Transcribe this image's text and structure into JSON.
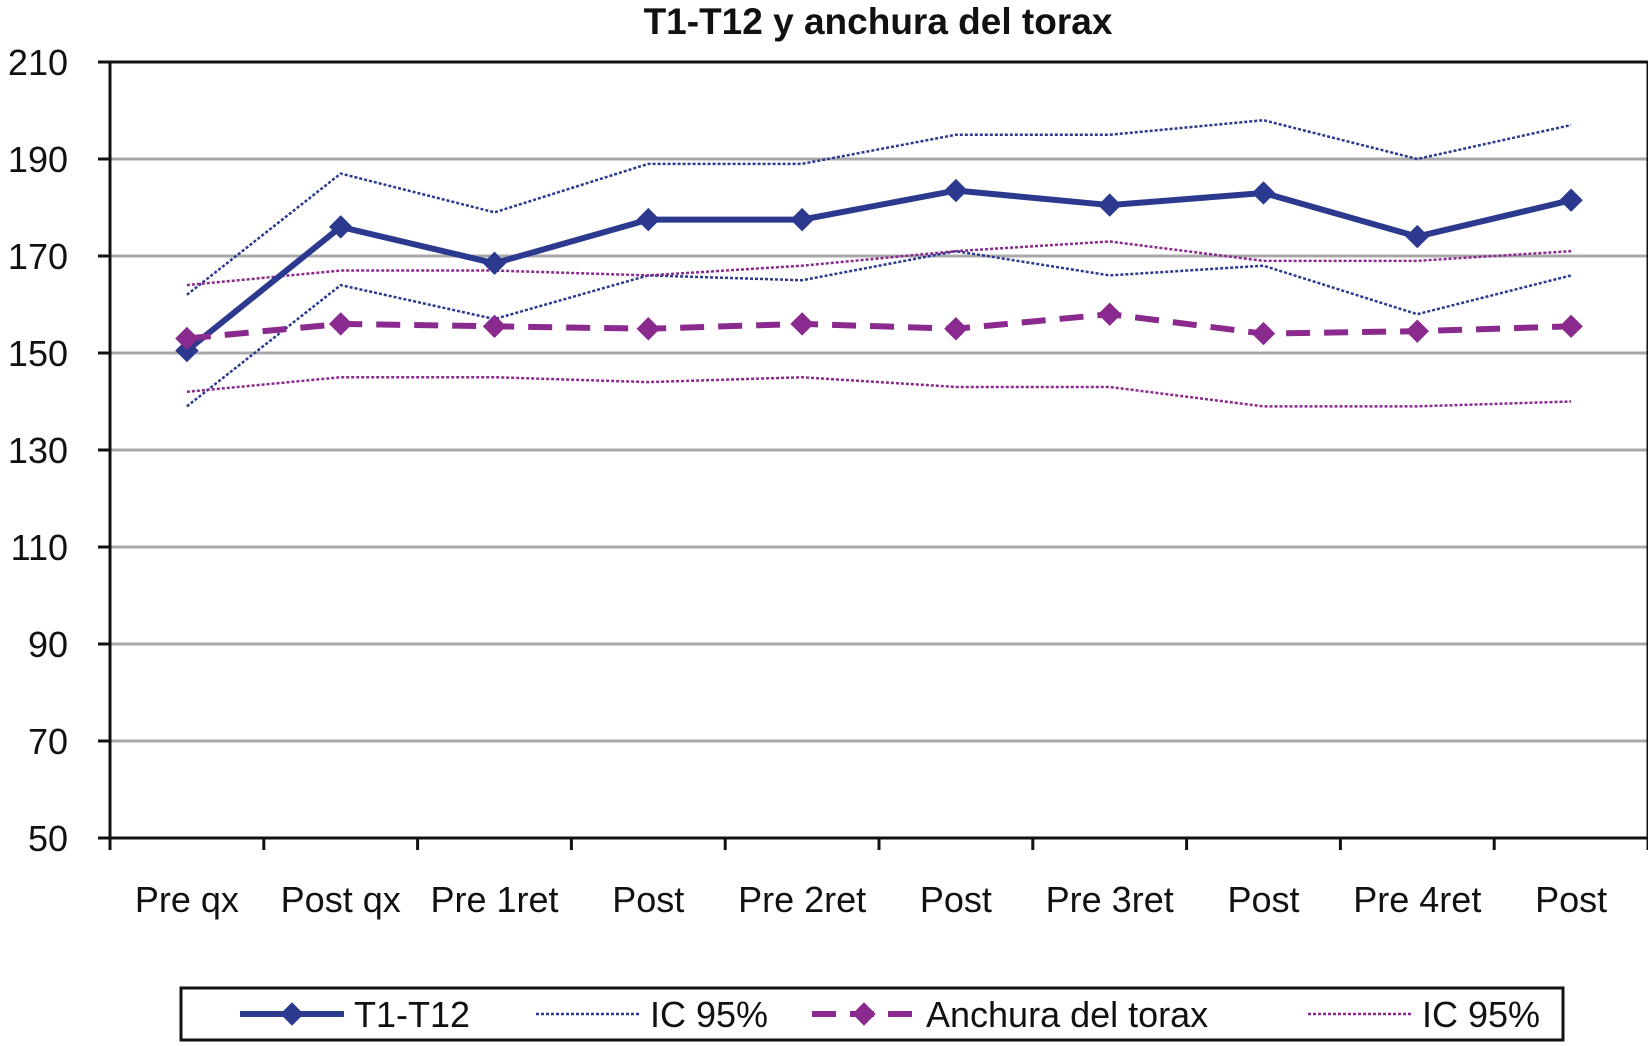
{
  "chart_data": {
    "type": "line",
    "title": "T1-T12 y anchura del torax",
    "xlabel": "",
    "ylabel": "",
    "categories": [
      "Pre qx",
      "Post qx",
      "Pre 1ret",
      "Post",
      "Pre 2ret",
      "Post",
      "Pre 3ret",
      "Post",
      "Pre 4ret",
      "Post"
    ],
    "ylim": [
      50,
      210
    ],
    "yticks": [
      "210",
      "190",
      "170",
      "150",
      "130",
      "110",
      "90",
      "70",
      "50"
    ],
    "ytick_values": [
      210,
      190,
      170,
      150,
      130,
      110,
      90,
      70,
      50
    ],
    "grid": true,
    "legend_position": "bottom",
    "series": [
      {
        "name": "T1-T12",
        "style": "thick-solid-diamond",
        "color": "#2b3a8f",
        "values": [
          150.5,
          176,
          168.5,
          177.5,
          177.5,
          183.5,
          180.5,
          183,
          174,
          181.5
        ]
      },
      {
        "name": "IC 95%",
        "style": "thin-dotted",
        "color": "#2b3a8f",
        "legend": true,
        "values": [
          162,
          187,
          179,
          189,
          189,
          195,
          195,
          198,
          190,
          197
        ]
      },
      {
        "name": "IC 95%",
        "style": "thin-dotted",
        "color": "#2b3a8f",
        "legend": false,
        "values": [
          139,
          164,
          157,
          166,
          165,
          171,
          166,
          168,
          158,
          166
        ]
      },
      {
        "name": "Anchura del torax",
        "style": "thick-dashed-diamond",
        "color": "#8b2a8e",
        "values": [
          153,
          156,
          155.5,
          155,
          156,
          155,
          158,
          154,
          154.5,
          155.5
        ]
      },
      {
        "name": "IC 95%",
        "style": "thin-dotted",
        "color": "#8b2a8e",
        "legend": true,
        "values": [
          164,
          167,
          167,
          166,
          168,
          171,
          173,
          169,
          169,
          171
        ]
      },
      {
        "name": "IC 95%",
        "style": "thin-dotted",
        "color": "#8b2a8e",
        "legend": false,
        "values": [
          142,
          145,
          145,
          144,
          145,
          143,
          143,
          139,
          139,
          140
        ]
      }
    ]
  }
}
